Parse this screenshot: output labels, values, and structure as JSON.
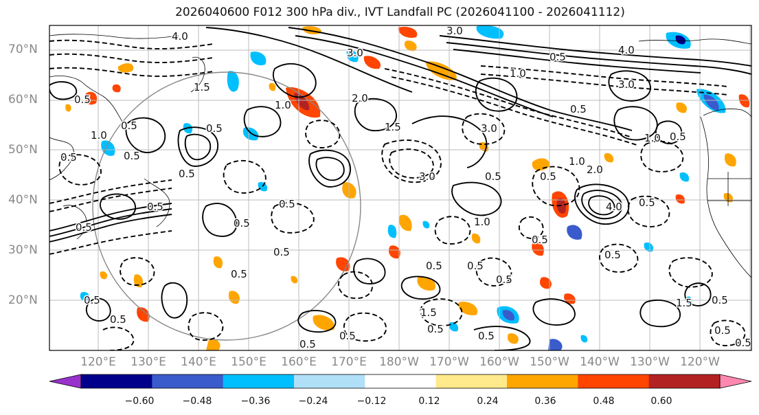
{
  "title": "2026040600 F012 300 hPa div., IVT Landfall PC (2026041100 - 2026041112)",
  "lat_labels": [
    "70°N",
    "60°N",
    "50°N",
    "40°N",
    "30°N",
    "20°N"
  ],
  "lon_labels": [
    "120°E",
    "130°E",
    "140°E",
    "150°E",
    "160°E",
    "170°E",
    "180°W",
    "170°W",
    "160°W",
    "150°W",
    "140°W",
    "130°W",
    "120°W"
  ],
  "colorbar": {
    "colors": [
      "#9932cc",
      "#00008b",
      "#3a5bcc",
      "#00bfff",
      "#b0e0f8",
      "#ffffff",
      "#ffe98a",
      "#ffa500",
      "#ff4500",
      "#b22222",
      "#ff88b0"
    ],
    "ticks": [
      "−0.60",
      "−0.48",
      "−0.36",
      "−0.24",
      "−0.12",
      "0.12",
      "0.24",
      "0.36",
      "0.48",
      "0.60"
    ]
  },
  "contour_labels": [
    "4.0",
    "3.0",
    "3.0",
    "2.0",
    "1.5",
    "1.0",
    "1.0",
    "0.5",
    "0.5",
    "0.5",
    "0.5",
    "1.0",
    "3.0",
    "0.5",
    "0.5",
    "0.5",
    "0.5",
    "0.5",
    "1.0",
    "1.5",
    "3.0",
    "0.5",
    "0.5",
    "0.5",
    "0.5",
    "0.5",
    "0.5",
    "1.0",
    "2.0",
    "4.0",
    "0.5",
    "3.0",
    "0.5",
    "1.0",
    "4.0",
    "0.5",
    "0.5",
    "0.5",
    "0.5",
    "1.5",
    "0.5",
    "0.5",
    "0.5",
    "0.5",
    "0.5",
    "0.5",
    "0.5",
    "1.5",
    "0.5",
    "0.5",
    "0.5",
    "0.5"
  ]
}
